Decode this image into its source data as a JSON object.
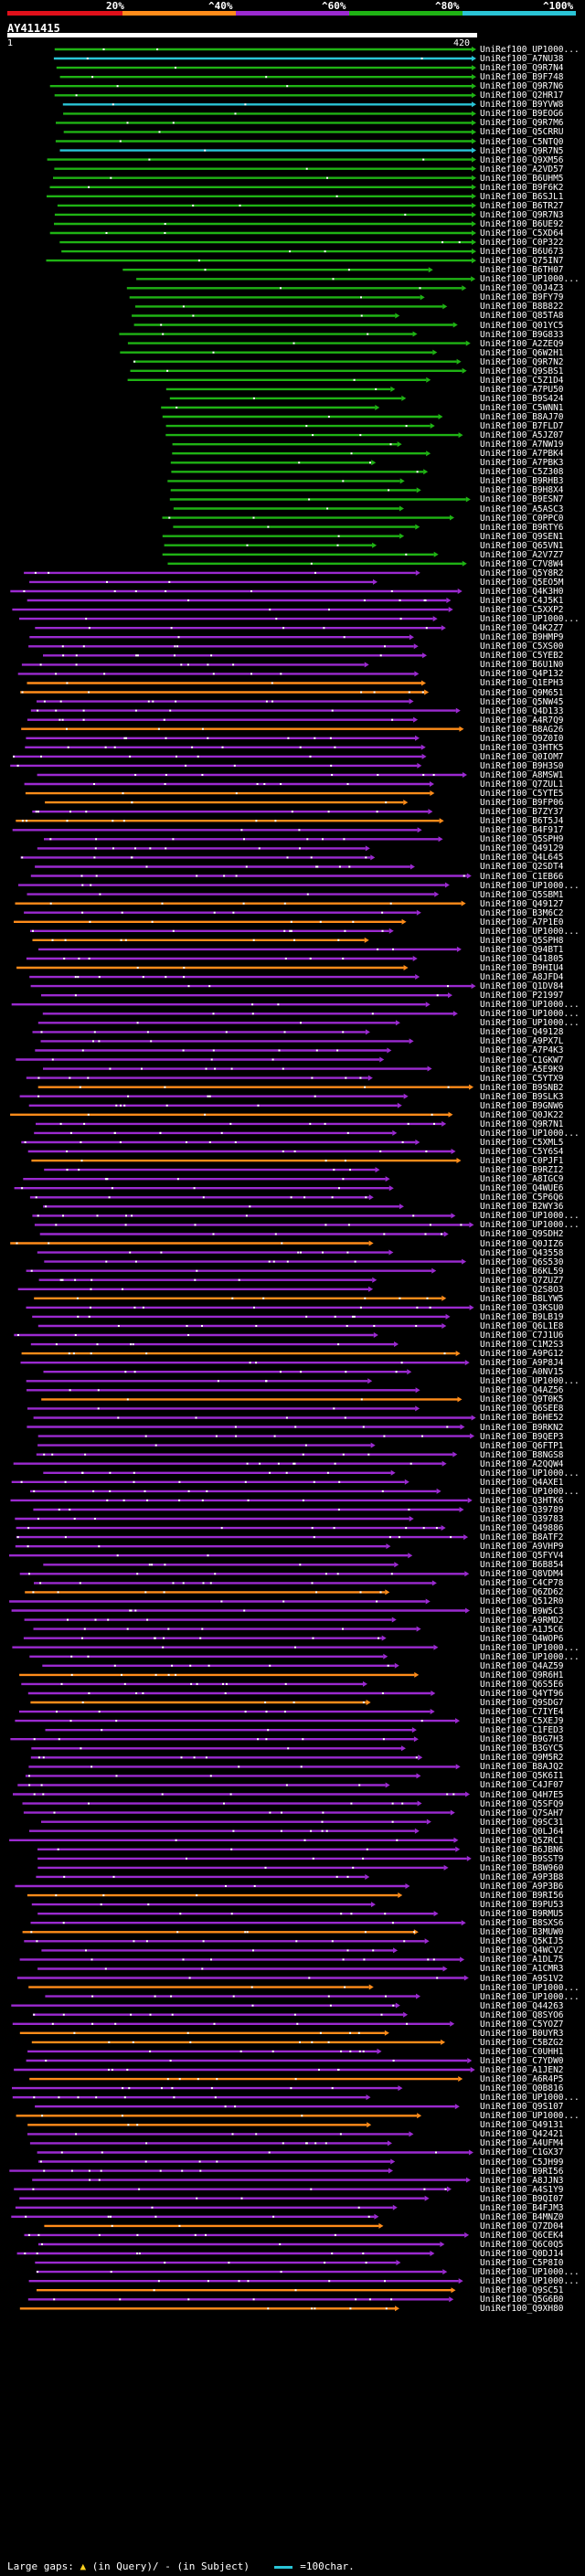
{
  "scale": {
    "ticks": [
      "20%",
      "^40%",
      "^60%",
      "^80%",
      "^100%"
    ],
    "colors": [
      "#e0101a",
      "#ff8c1a",
      "#9b2ad0",
      "#1fb314",
      "#2ac4d6"
    ]
  },
  "query": {
    "id": "AY411415",
    "start": "1",
    "end": "420"
  },
  "legend": {
    "text": "Large gaps:",
    "ins_query": "in Query",
    "ins_subject": "in Subject",
    "scale_note": "=100char."
  },
  "hits": [
    "UniRef100_UP1000...",
    "UniRef100_A7NU38",
    "UniRef100_Q9R7N4",
    "UniRef100_B9F748",
    "UniRef100_Q9R7N6",
    "UniRef100_Q2HR17",
    "UniRef100_B9YVW8",
    "UniRef100_B9EOG6",
    "UniRef100_Q9R7M6",
    "UniRef100_Q5CRRU",
    "UniRef100_C5NTQ0",
    "UniRef100_Q9R7N5",
    "UniRef100_Q9XM56",
    "UniRef100_A2VD57",
    "UniRef100_B6UHM5",
    "UniRef100_B9F6K2",
    "UniRef100_B6SJL1",
    "UniRef100_B6TR27",
    "UniRef100_Q9R7N3",
    "UniRef100_B6UE92",
    "UniRef100_C5XD64",
    "UniRef100_C0P322",
    "UniRef100_B6U673",
    "UniRef100_Q75IN7",
    "UniRef100_B6TH07",
    "UniRef100_UP1000...",
    "UniRef100_Q0J4Z3",
    "UniRef100_B9FY79",
    "UniRef100_B8B822",
    "UniRef100_Q85TA8",
    "UniRef100_Q01YC5",
    "UniRef100_B9G833",
    "UniRef100_A2ZEQ9",
    "UniRef100_Q6W2H1",
    "UniRef100_Q9R7N2",
    "UniRef100_Q9SBS1",
    "UniRef100_C5Z1D4",
    "UniRef100_A7PU50",
    "UniRef100_B9S424",
    "UniRef100_C5WNN1",
    "UniRef100_B8AJ70",
    "UniRef100_B7FLD7",
    "UniRef100_A5JZ07",
    "UniRef100_A7NW19",
    "UniRef100_A7PBK4",
    "UniRef100_A7PBK3",
    "UniRef100_C5Z308",
    "UniRef100_B9RHB3",
    "UniRef100_B9H8X4",
    "UniRef100_B9ESN7",
    "UniRef100_A5ASC3",
    "UniRef100_C0PPC0",
    "UniRef100_B9RTY6",
    "UniRef100_Q9SEN1",
    "UniRef100_Q65VN1",
    "UniRef100_A2V7Z7",
    "UniRef100_C7V8W4",
    "UniRef100_Q5Y8R2",
    "UniRef100_Q5EO5M",
    "UniRef100_Q4K3H0",
    "UniRef100_C4J5K1",
    "UniRef100_C5XXP2",
    "UniRef100_UP1000...",
    "UniRef100_Q4K2Z7",
    "UniRef100_B9HMP9",
    "UniRef100_C5XS00",
    "UniRef100_C5YEB2",
    "UniRef100_B6U1N0",
    "UniRef100_Q4P132",
    "UniRef100_Q1EPH3",
    "UniRef100_Q9M651",
    "UniRef100_Q5NW45",
    "UniRef100_Q4D133",
    "UniRef100_A4R7Q9",
    "UniRef100_B8AG26",
    "UniRef100_Q9Z0I0",
    "UniRef100_Q3HTK5",
    "UniRef100_Q0IOM7",
    "UniRef100_B9H3S0",
    "UniRef100_A8MSW1",
    "UniRef100_Q7ZUL1",
    "UniRef100_C5YTE5",
    "UniRef100_B9FP06",
    "UniRef100_B7ZY37",
    "UniRef100_B6T5J4",
    "UniRef100_B4F917",
    "UniRef100_Q5SPH9",
    "UniRef100_Q49129",
    "UniRef100_Q4L645",
    "UniRef100_Q2SDT4",
    "UniRef100_C1EB66",
    "UniRef100_UP1000...",
    "UniRef100_Q5SBM1",
    "UniRef100_Q49127",
    "UniRef100_B3M6C2",
    "UniRef100_A7P1E0",
    "UniRef100_UP1000...",
    "UniRef100_Q5SPH8",
    "UniRef100_Q94BT1",
    "UniRef100_Q41805",
    "UniRef100_B9HIU4",
    "UniRef100_A8JFD4",
    "UniRef100_Q1DV84",
    "UniRef100_P21997",
    "UniRef100_UP1000...",
    "UniRef100_UP1000...",
    "UniRef100_UP1000...",
    "UniRef100_Q49128",
    "UniRef100_A9PX7L",
    "UniRef100_A7P4K3",
    "UniRef100_C1GKW7",
    "UniRef100_A5E9K9",
    "UniRef100_C5YTX9",
    "UniRef100_B9SNB2",
    "UniRef100_B9SLK3",
    "UniRef100_B9GNW6",
    "UniRef100_Q0JK22",
    "UniRef100_Q9R7N1",
    "UniRef100_UP1000...",
    "UniRef100_C5XML5",
    "UniRef100_C5Y6S4",
    "UniRef100_C0PJF1",
    "UniRef100_B9RZI2",
    "UniRef100_A8IGC9",
    "UniRef100_Q4WUE6",
    "UniRef100_C5P6Q6",
    "UniRef100_B2WY36",
    "UniRef100_UP1000...",
    "UniRef100_UP1000...",
    "UniRef100_Q9SDH2",
    "UniRef100_Q0JIZ6",
    "UniRef100_Q43558",
    "UniRef100_Q6S530",
    "UniRef100_B6KL59",
    "UniRef100_Q7ZUZ7",
    "UniRef100_Q2S8O3",
    "UniRef100_B8LYW5",
    "UniRef100_Q3KSU0",
    "UniRef100_B9LB19",
    "UniRef100_Q6L1E8",
    "UniRef100_C7J1U6",
    "UniRef100_C1M2S3",
    "UniRef100_A9PG12",
    "UniRef100_A9P8J4",
    "UniRef100_A0NV15",
    "UniRef100_UP1000...",
    "UniRef100_Q4AZ56",
    "UniRef100_Q9T0K5",
    "UniRef100_Q6SEE8",
    "UniRef100_B6HE52",
    "UniRef100_B9RKN2",
    "UniRef100_B9QEP3",
    "UniRef100_Q6FTP1",
    "UniRef100_B8NGS8",
    "UniRef100_A2QQW4",
    "UniRef100_UP1000...",
    "UniRef100_Q4AXE1",
    "UniRef100_UP1000...",
    "UniRef100_Q3HTK6",
    "UniRef100_Q39789",
    "UniRef100_Q39783",
    "UniRef100_Q49886",
    "UniRef100_B8ATF2",
    "UniRef100_A9VHP9",
    "UniRef100_Q5FYV4",
    "UniRef100_B6B854",
    "UniRef100_Q8VDM4",
    "UniRef100_C4CP78",
    "UniRef100_Q6ZD62",
    "UniRef100_Q512R0",
    "UniRef100_B9W5C3",
    "UniRef100_A9RMD2",
    "UniRef100_A1J5C6",
    "UniRef100_Q4WOP6",
    "UniRef100_UP1000...",
    "UniRef100_UP1000...",
    "UniRef100_Q4AZ59",
    "UniRef100_Q9R6H1",
    "UniRef100_Q6S5E6",
    "UniRef100_Q4YT96",
    "UniRef100_Q9SDG7",
    "UniRef100_C7IYE4",
    "UniRef100_C5XEJ9",
    "UniRef100_C1FED3",
    "UniRef100_B9G7H3",
    "UniRef100_B3GYC5",
    "UniRef100_Q9M5R2",
    "UniRef100_B8AJQ2",
    "UniRef100_Q5K6I1",
    "UniRef100_C4JF07",
    "UniRef100_Q4H7E5",
    "UniRef100_Q5SFQ9",
    "UniRef100_Q7SAH7",
    "UniRef100_Q9SC31",
    "UniRef100_Q0LJ64",
    "UniRef100_Q5ZRC1",
    "UniRef100_B6JBN6",
    "UniRef100_B9SST9",
    "UniRef100_B8W960",
    "UniRef100_A9P3B8",
    "UniRef100_A9P3B6",
    "UniRef100_B9RI56",
    "UniRef100_B9PU53",
    "UniRef100_B9RMU5",
    "UniRef100_B8SXS6",
    "UniRef100_B3MUW0",
    "UniRef100_Q5KIJ5",
    "UniRef100_Q4WCV2",
    "UniRef100_A1DL75",
    "UniRef100_A1CMR3",
    "UniRef100_A9S1V2",
    "UniRef100_UP1000...",
    "UniRef100_UP1000...",
    "UniRef100_Q44263",
    "UniRef100_Q8SYO6",
    "UniRef100_C5YOZ7",
    "UniRef100_B0UYR3",
    "UniRef100_C5BZG2",
    "UniRef100_C0UHH1",
    "UniRef100_C7YDW0",
    "UniRef100_A1JEN2",
    "UniRef100_A6R4P5",
    "UniRef100_Q0B816",
    "UniRef100_UP1000...",
    "UniRef100_Q9S107",
    "UniRef100_UP1000...",
    "UniRef100_Q49131",
    "UniRef100_Q42421",
    "UniRef100_A4UFM4",
    "UniRef100_C1GX37",
    "UniRef100_C5JH99",
    "UniRef100_B9RI56",
    "UniRef100_A8JJN3",
    "UniRef100_A4S1Y9",
    "UniRef100_B9QI07",
    "UniRef100_B4FJM3",
    "UniRef100_B4MNZ0",
    "UniRef100_Q7ZD04",
    "UniRef100_Q6CEK4",
    "UniRef100_Q6C0Q5",
    "UniRef100_Q0DJ14",
    "UniRef100_C5P8I0",
    "UniRef100_UP1000...",
    "UniRef100_UP1000...",
    "UniRef100_Q9SC51",
    "UniRef100_Q5G6B0",
    "UniRef100_Q9XH80"
  ]
}
